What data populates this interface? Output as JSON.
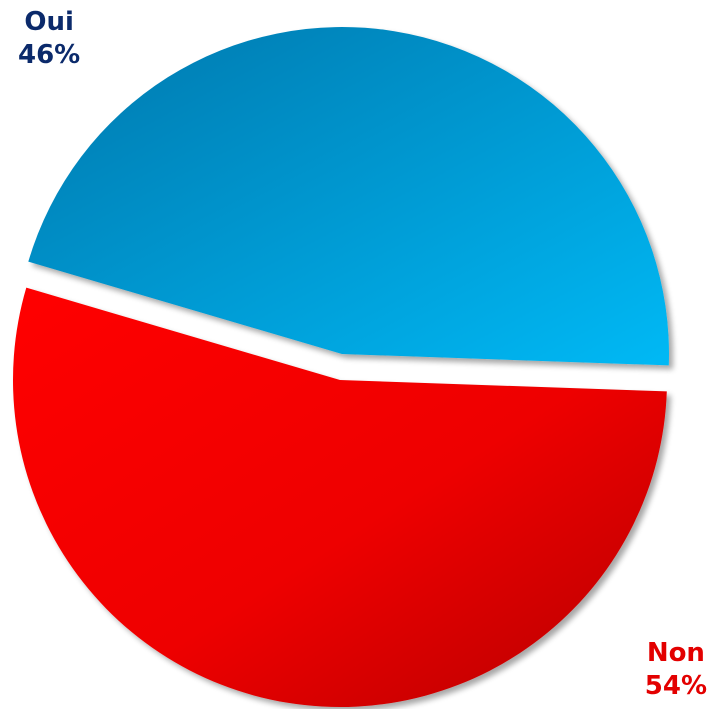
{
  "chart_data": {
    "type": "pie",
    "slices": [
      {
        "label": "Oui",
        "value": 46,
        "value_label": "46%",
        "color": "#0096d6",
        "label_color": "#0b2a6b"
      },
      {
        "label": "Non",
        "value": 54,
        "value_label": "54%",
        "color": "#e30000",
        "label_color": "#e30000"
      }
    ],
    "legend": "none"
  }
}
